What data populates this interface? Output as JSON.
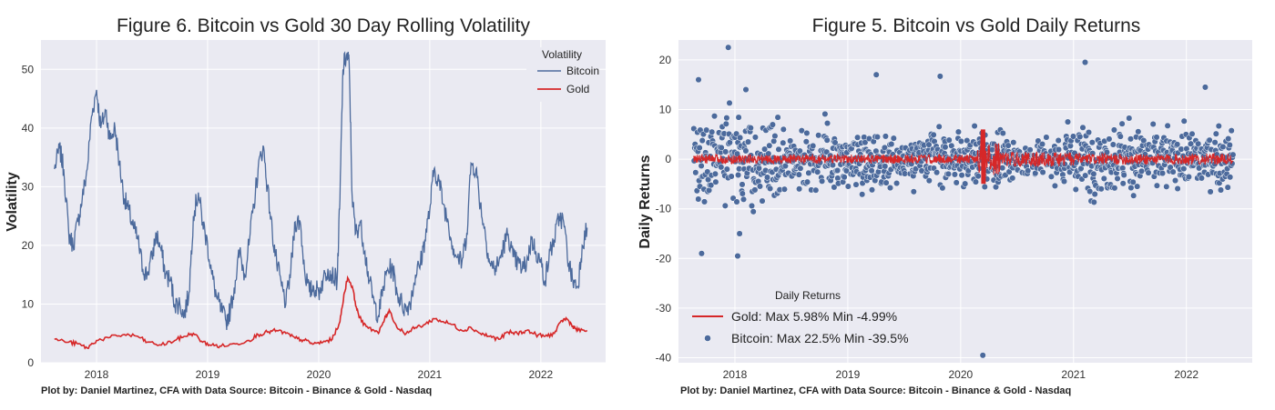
{
  "chart_data": [
    {
      "type": "line",
      "title": "Figure 6. Bitcoin vs Gold 30 Day Rolling Volatility",
      "ylabel": "Volatility",
      "xlabel": "",
      "footer": "Plot by: Daniel Martinez, CFA with Data Source: Bitcoin - Binance & Gold - Nasdaq",
      "legend": {
        "title": "Volatility",
        "placement": "top-right"
      },
      "xlim": [
        "2017-07-01",
        "2022-08-01"
      ],
      "ylim": [
        0,
        55
      ],
      "x_ticks": [
        "2018",
        "2019",
        "2020",
        "2021",
        "2022"
      ],
      "y_ticks": [
        "0",
        "10",
        "20",
        "30",
        "40",
        "50"
      ],
      "grid": true,
      "series": [
        {
          "name": "Bitcoin",
          "color": "#4c6a9c",
          "points": [
            [
              "2017-08-15",
              33
            ],
            [
              "2017-09-01",
              36.5
            ],
            [
              "2017-09-15",
              33
            ],
            [
              "2017-10-01",
              22
            ],
            [
              "2017-10-15",
              20
            ],
            [
              "2017-11-01",
              24
            ],
            [
              "2017-11-15",
              28
            ],
            [
              "2017-12-01",
              33
            ],
            [
              "2017-12-15",
              42
            ],
            [
              "2018-01-01",
              46.5
            ],
            [
              "2018-01-15",
              40
            ],
            [
              "2018-02-01",
              43
            ],
            [
              "2018-02-15",
              38
            ],
            [
              "2018-03-01",
              40
            ],
            [
              "2018-03-15",
              34
            ],
            [
              "2018-04-01",
              28
            ],
            [
              "2018-04-15",
              26
            ],
            [
              "2018-05-01",
              23
            ],
            [
              "2018-05-15",
              21
            ],
            [
              "2018-06-01",
              16
            ],
            [
              "2018-06-15",
              15
            ],
            [
              "2018-07-01",
              18
            ],
            [
              "2018-07-15",
              22
            ],
            [
              "2018-08-01",
              19
            ],
            [
              "2018-08-15",
              15
            ],
            [
              "2018-09-01",
              14
            ],
            [
              "2018-09-15",
              10
            ],
            [
              "2018-10-01",
              10
            ],
            [
              "2018-10-15",
              8
            ],
            [
              "2018-11-01",
              12
            ],
            [
              "2018-11-15",
              25
            ],
            [
              "2018-12-01",
              29
            ],
            [
              "2018-12-15",
              24
            ],
            [
              "2019-01-01",
              20
            ],
            [
              "2019-01-15",
              15
            ],
            [
              "2019-02-01",
              11
            ],
            [
              "2019-02-15",
              9
            ],
            [
              "2019-03-01",
              7
            ],
            [
              "2019-03-15",
              9
            ],
            [
              "2019-04-01",
              14
            ],
            [
              "2019-04-15",
              19
            ],
            [
              "2019-05-01",
              15
            ],
            [
              "2019-05-15",
              20
            ],
            [
              "2019-06-01",
              27
            ],
            [
              "2019-06-15",
              33
            ],
            [
              "2019-07-01",
              37
            ],
            [
              "2019-07-15",
              30
            ],
            [
              "2019-08-01",
              22
            ],
            [
              "2019-08-15",
              17
            ],
            [
              "2019-09-01",
              13
            ],
            [
              "2019-09-15",
              10
            ],
            [
              "2019-10-01",
              16
            ],
            [
              "2019-10-15",
              24
            ],
            [
              "2019-11-01",
              24
            ],
            [
              "2019-11-15",
              16
            ],
            [
              "2019-12-01",
              12
            ],
            [
              "2019-12-15",
              13
            ],
            [
              "2020-01-01",
              12
            ],
            [
              "2020-01-15",
              14
            ],
            [
              "2020-02-01",
              16
            ],
            [
              "2020-02-15",
              15
            ],
            [
              "2020-03-01",
              14
            ],
            [
              "2020-03-10",
              28
            ],
            [
              "2020-03-20",
              50
            ],
            [
              "2020-04-01",
              52.5
            ],
            [
              "2020-04-10",
              51
            ],
            [
              "2020-04-20",
              28
            ],
            [
              "2020-05-01",
              22
            ],
            [
              "2020-05-15",
              24
            ],
            [
              "2020-06-01",
              19
            ],
            [
              "2020-06-15",
              14
            ],
            [
              "2020-07-01",
              10
            ],
            [
              "2020-07-15",
              8
            ],
            [
              "2020-08-01",
              13
            ],
            [
              "2020-08-15",
              16
            ],
            [
              "2020-09-01",
              16
            ],
            [
              "2020-09-15",
              12
            ],
            [
              "2020-10-01",
              10
            ],
            [
              "2020-10-15",
              9
            ],
            [
              "2020-11-01",
              11
            ],
            [
              "2020-11-15",
              15
            ],
            [
              "2020-12-01",
              17
            ],
            [
              "2020-12-15",
              21
            ],
            [
              "2021-01-01",
              26
            ],
            [
              "2021-01-15",
              33
            ],
            [
              "2021-02-01",
              31
            ],
            [
              "2021-02-15",
              27
            ],
            [
              "2021-03-01",
              24
            ],
            [
              "2021-03-15",
              20
            ],
            [
              "2021-04-01",
              18
            ],
            [
              "2021-04-15",
              17
            ],
            [
              "2021-05-01",
              22
            ],
            [
              "2021-05-15",
              34
            ],
            [
              "2021-06-01",
              33
            ],
            [
              "2021-06-15",
              27
            ],
            [
              "2021-07-01",
              22
            ],
            [
              "2021-07-15",
              17
            ],
            [
              "2021-08-01",
              16
            ],
            [
              "2021-08-15",
              17
            ],
            [
              "2021-09-01",
              20
            ],
            [
              "2021-09-15",
              22
            ],
            [
              "2021-10-01",
              18
            ],
            [
              "2021-10-15",
              17
            ],
            [
              "2021-11-01",
              16
            ],
            [
              "2021-11-15",
              17
            ],
            [
              "2021-12-01",
              21
            ],
            [
              "2021-12-15",
              19
            ],
            [
              "2022-01-01",
              17
            ],
            [
              "2022-01-15",
              14
            ],
            [
              "2022-02-01",
              19
            ],
            [
              "2022-02-15",
              21
            ],
            [
              "2022-03-01",
              25
            ],
            [
              "2022-03-15",
              24
            ],
            [
              "2022-04-01",
              17
            ],
            [
              "2022-04-15",
              14
            ],
            [
              "2022-05-01",
              13
            ],
            [
              "2022-05-15",
              20
            ],
            [
              "2022-06-01",
              23
            ]
          ]
        },
        {
          "name": "Gold",
          "color": "#d62728",
          "points": [
            [
              "2017-08-15",
              4
            ],
            [
              "2017-10-01",
              3.5
            ],
            [
              "2017-11-01",
              3.2
            ],
            [
              "2017-12-01",
              2.5
            ],
            [
              "2018-01-01",
              3.8
            ],
            [
              "2018-02-15",
              4.3
            ],
            [
              "2018-04-01",
              4.8
            ],
            [
              "2018-05-15",
              4.5
            ],
            [
              "2018-06-15",
              3.5
            ],
            [
              "2018-08-01",
              3
            ],
            [
              "2018-09-15",
              3.8
            ],
            [
              "2018-10-15",
              4.5
            ],
            [
              "2018-11-15",
              5
            ],
            [
              "2018-12-15",
              3.5
            ],
            [
              "2019-01-15",
              3
            ],
            [
              "2019-02-15",
              2.8
            ],
            [
              "2019-04-01",
              3.2
            ],
            [
              "2019-05-15",
              3.8
            ],
            [
              "2019-06-15",
              4.8
            ],
            [
              "2019-07-15",
              5.2
            ],
            [
              "2019-08-15",
              5.5
            ],
            [
              "2019-09-15",
              5
            ],
            [
              "2019-10-15",
              4.2
            ],
            [
              "2019-11-15",
              3.8
            ],
            [
              "2019-12-15",
              3.2
            ],
            [
              "2020-01-15",
              3.5
            ],
            [
              "2020-02-15",
              4
            ],
            [
              "2020-03-10",
              7
            ],
            [
              "2020-03-25",
              12
            ],
            [
              "2020-04-05",
              14.5
            ],
            [
              "2020-04-20",
              13
            ],
            [
              "2020-05-05",
              9
            ],
            [
              "2020-05-20",
              7
            ],
            [
              "2020-06-15",
              6
            ],
            [
              "2020-07-15",
              5
            ],
            [
              "2020-08-05",
              7.5
            ],
            [
              "2020-08-20",
              9
            ],
            [
              "2020-09-15",
              6
            ],
            [
              "2020-10-15",
              5
            ],
            [
              "2020-11-15",
              6
            ],
            [
              "2020-12-15",
              6.5
            ],
            [
              "2021-01-15",
              7.5
            ],
            [
              "2021-02-15",
              7
            ],
            [
              "2021-03-15",
              6.5
            ],
            [
              "2021-04-15",
              5.5
            ],
            [
              "2021-05-15",
              6
            ],
            [
              "2021-06-15",
              5
            ],
            [
              "2021-07-15",
              4.5
            ],
            [
              "2021-08-15",
              4
            ],
            [
              "2021-09-15",
              5.2
            ],
            [
              "2021-10-15",
              5
            ],
            [
              "2021-11-15",
              5.5
            ],
            [
              "2021-12-15",
              4.8
            ],
            [
              "2022-01-15",
              4.5
            ],
            [
              "2022-02-15",
              5
            ],
            [
              "2022-03-10",
              7.2
            ],
            [
              "2022-03-25",
              7.5
            ],
            [
              "2022-04-15",
              6.2
            ],
            [
              "2022-05-01",
              5.5
            ],
            [
              "2022-06-01",
              5.5
            ]
          ]
        }
      ]
    },
    {
      "type": "scatter",
      "title": "Figure 5. Bitcoin vs Gold Daily Returns",
      "ylabel": "Daily Returns",
      "xlabel": "",
      "footer": "Plot by: Daniel Martinez, CFA with Data Source: Bitcoin - Binance & Gold - Nasdaq",
      "legend": {
        "title": "Daily Returns",
        "placement": "bottom-left"
      },
      "xlim": [
        "2017-07-01",
        "2022-08-01"
      ],
      "ylim": [
        -41,
        24
      ],
      "x_ticks": [
        "2018",
        "2019",
        "2020",
        "2021",
        "2022"
      ],
      "y_ticks": [
        "20",
        "10",
        "0",
        "-10",
        "-20",
        "-30",
        "-40"
      ],
      "grid": true,
      "series": [
        {
          "name": "Gold: Max 5.98%  Min -4.99%",
          "kind": "line",
          "color": "#d62728",
          "max": 5.98,
          "min": -4.99
        },
        {
          "name": "Bitcoin: Max 22.5%  Min -39.5%",
          "kind": "scatter",
          "color": "#4c6a9c",
          "max": 22.5,
          "min": -39.5
        }
      ],
      "notable_points": [
        [
          "2017-12-10",
          22.5
        ],
        [
          "2020-03-12",
          -39.5
        ],
        [
          "2021-02-08",
          19.5
        ],
        [
          "2017-09-15",
          -19
        ],
        [
          "2018-01-10",
          -19.5
        ],
        [
          "2018-01-16",
          -15
        ],
        [
          "2017-09-05",
          16
        ],
        [
          "2018-02-06",
          14
        ],
        [
          "2019-04-02",
          17
        ],
        [
          "2019-10-26",
          16.7
        ],
        [
          "2022-03-01",
          14.5
        ]
      ]
    }
  ]
}
